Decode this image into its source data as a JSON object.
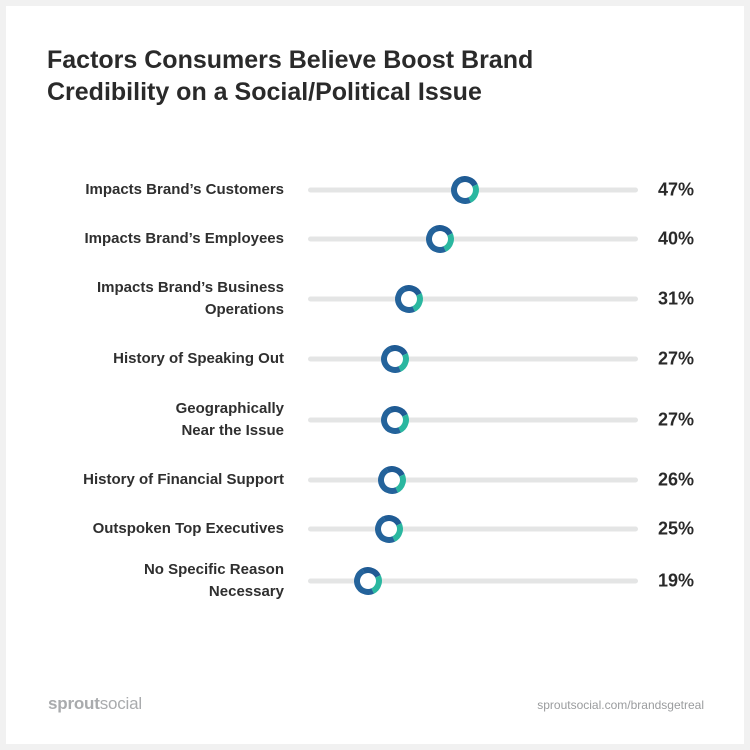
{
  "title": "Factors Consumers Believe Boost Brand Credibility on a Social/Political Issue",
  "chart_data": {
    "type": "scatter",
    "title": "Factors Consumers Believe Boost Brand Credibility on a Social/Political Issue",
    "xlim": [
      0,
      100
    ],
    "categories": [
      "Impacts Brand’s Customers",
      "Impacts Brand’s Employees",
      "Impacts Brand’s Business\nOperations",
      "History of Speaking Out",
      "Geographically\nNear the Issue",
      "History of Financial Support",
      "Outspoken Top Executives",
      "No Specific Reason\nNecessary"
    ],
    "values": [
      47,
      40,
      31,
      27,
      27,
      26,
      25,
      19
    ],
    "value_labels": [
      "47%",
      "40%",
      "31%",
      "27%",
      "27%",
      "26%",
      "25%",
      "19%"
    ],
    "colors": {
      "ring": "#24639b",
      "ring_accent": "#2ab7a0",
      "track": "#e4e5e5"
    }
  },
  "footer": {
    "logo_bold": "sprout",
    "logo_light": "social",
    "url": "sproutsocial.com/brandsgetreal"
  }
}
